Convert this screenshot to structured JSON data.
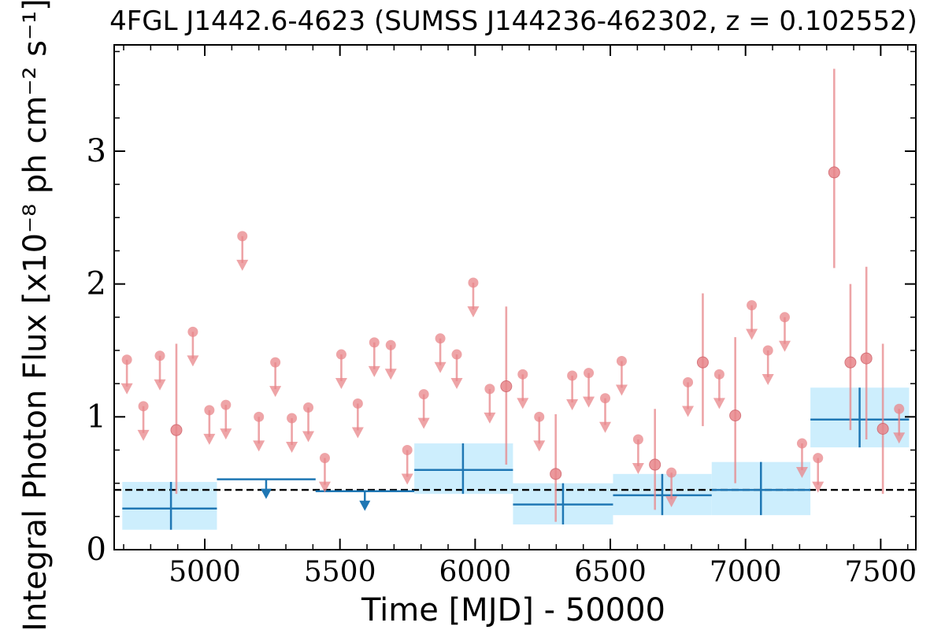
{
  "chart_data": {
    "type": "scatter",
    "title": "4FGL J1442.6-4623 (SUMSS J144236-462302, z = 0.102552)",
    "xlabel": "Time [MJD] - 50000",
    "ylabel": "Integral Photon Flux [x10⁻⁸ ph cm⁻² s⁻¹]",
    "xlim": [
      4665,
      7630
    ],
    "ylim": [
      0,
      3.8
    ],
    "x_ticks": [
      5000,
      5500,
      6000,
      6500,
      7000,
      7500
    ],
    "x_tick_labels": [
      "5000",
      "5500",
      "6000",
      "6500",
      "7000",
      "7500"
    ],
    "y_ticks": [
      0,
      1,
      2,
      3
    ],
    "y_tick_labels": [
      "0",
      "1",
      "2",
      "3"
    ],
    "grid": false,
    "reference_line": {
      "y": 0.45,
      "style": "dashed",
      "color": "#000000"
    },
    "colors": {
      "short_bins": "#e8868a",
      "long_bins": "#1f77b4",
      "long_bins_band": "#cdeefd"
    },
    "series": [
      {
        "kind": "short-bin-detections",
        "points": [
          {
            "x": 4895,
            "y": 0.9,
            "ylo": 0.42,
            "yhi": 1.55
          },
          {
            "x": 6115,
            "y": 1.23,
            "ylo": 0.64,
            "yhi": 1.83
          },
          {
            "x": 6298,
            "y": 0.57,
            "ylo": 0.21,
            "yhi": 1.02
          },
          {
            "x": 6665,
            "y": 0.64,
            "ylo": 0.3,
            "yhi": 1.06
          },
          {
            "x": 6842,
            "y": 1.41,
            "ylo": 0.93,
            "yhi": 1.93
          },
          {
            "x": 6962,
            "y": 1.01,
            "ylo": 0.5,
            "yhi": 1.6
          },
          {
            "x": 7328,
            "y": 2.84,
            "ylo": 2.12,
            "yhi": 3.62
          },
          {
            "x": 7388,
            "y": 1.41,
            "ylo": 0.9,
            "yhi": 2.0
          },
          {
            "x": 7447,
            "y": 1.44,
            "ylo": 0.83,
            "yhi": 2.13
          },
          {
            "x": 7508,
            "y": 0.91,
            "ylo": 0.42,
            "yhi": 1.55
          }
        ]
      },
      {
        "kind": "short-bin-upper-limits",
        "points": [
          {
            "x": 4712,
            "y": 1.43
          },
          {
            "x": 4773,
            "y": 1.08
          },
          {
            "x": 4834,
            "y": 1.46
          },
          {
            "x": 4956,
            "y": 1.64
          },
          {
            "x": 5017,
            "y": 1.05
          },
          {
            "x": 5078,
            "y": 1.09
          },
          {
            "x": 5139,
            "y": 2.36
          },
          {
            "x": 5200,
            "y": 1.0
          },
          {
            "x": 5261,
            "y": 1.41
          },
          {
            "x": 5322,
            "y": 0.99
          },
          {
            "x": 5383,
            "y": 1.07
          },
          {
            "x": 5444,
            "y": 0.69
          },
          {
            "x": 5505,
            "y": 1.47
          },
          {
            "x": 5566,
            "y": 1.1
          },
          {
            "x": 5627,
            "y": 1.56
          },
          {
            "x": 5688,
            "y": 1.54
          },
          {
            "x": 5749,
            "y": 0.75
          },
          {
            "x": 5810,
            "y": 1.17
          },
          {
            "x": 5871,
            "y": 1.59
          },
          {
            "x": 5932,
            "y": 1.47
          },
          {
            "x": 5993,
            "y": 2.01
          },
          {
            "x": 6054,
            "y": 1.21
          },
          {
            "x": 6176,
            "y": 1.32
          },
          {
            "x": 6237,
            "y": 1.0
          },
          {
            "x": 6359,
            "y": 1.31
          },
          {
            "x": 6420,
            "y": 1.33
          },
          {
            "x": 6481,
            "y": 1.14
          },
          {
            "x": 6542,
            "y": 1.42
          },
          {
            "x": 6603,
            "y": 0.83
          },
          {
            "x": 6726,
            "y": 0.58
          },
          {
            "x": 6787,
            "y": 1.26
          },
          {
            "x": 6903,
            "y": 1.32
          },
          {
            "x": 7023,
            "y": 1.84
          },
          {
            "x": 7083,
            "y": 1.5
          },
          {
            "x": 7145,
            "y": 1.75
          },
          {
            "x": 7209,
            "y": 0.8
          },
          {
            "x": 7268,
            "y": 0.69
          },
          {
            "x": 7568,
            "y": 1.06
          }
        ]
      },
      {
        "kind": "long-bin-detections",
        "bins": [
          {
            "x0": 4695,
            "x1": 5045,
            "xc": 4875,
            "y": 0.31,
            "ylo": 0.15,
            "yhi": 0.51
          },
          {
            "x0": 5775,
            "x1": 6140,
            "xc": 5955,
            "y": 0.6,
            "ylo": 0.42,
            "yhi": 0.8
          },
          {
            "x0": 6140,
            "x1": 6510,
            "xc": 6325,
            "y": 0.34,
            "ylo": 0.19,
            "yhi": 0.5
          },
          {
            "x0": 6510,
            "x1": 6875,
            "xc": 6692,
            "y": 0.41,
            "ylo": 0.26,
            "yhi": 0.57
          },
          {
            "x0": 6875,
            "x1": 7240,
            "xc": 7057,
            "y": 0.45,
            "ylo": 0.26,
            "yhi": 0.66
          },
          {
            "x0": 7240,
            "x1": 7605,
            "xc": 7422,
            "y": 0.98,
            "ylo": 0.77,
            "yhi": 1.22
          }
        ]
      },
      {
        "kind": "long-bin-upper-limits",
        "bins": [
          {
            "x0": 5045,
            "x1": 5410,
            "xc": 5227,
            "y": 0.53
          },
          {
            "x0": 5410,
            "x1": 5775,
            "xc": 5592,
            "y": 0.44
          }
        ]
      }
    ]
  }
}
